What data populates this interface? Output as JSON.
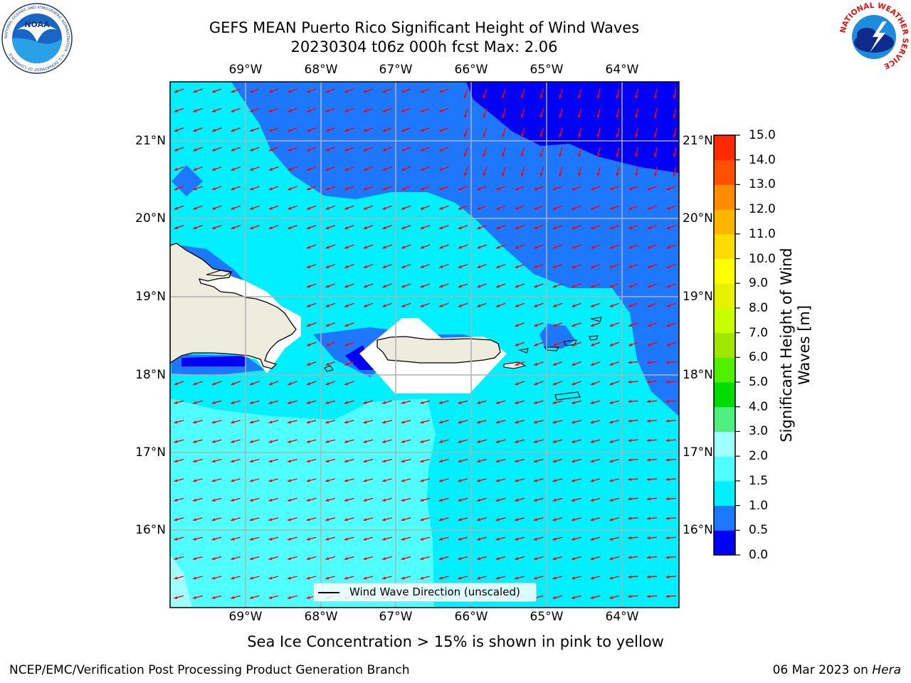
{
  "title": {
    "line1": "GEFS MEAN Puerto Rico Significant Height of Wind Waves",
    "line2": "20230304 t06z 000h fcst   Max: 2.06"
  },
  "map": {
    "lon_labels": [
      "69°W",
      "68°W",
      "67°W",
      "66°W",
      "65°W",
      "64°W"
    ],
    "lat_labels": [
      "21°N",
      "20°N",
      "19°N",
      "18°N",
      "17°N",
      "16°N"
    ],
    "land_color": "#eeecdc",
    "arrow_color": "#ff0000",
    "grid_color": "#b0b0b0"
  },
  "legend": {
    "label": "Wind Wave Direction (unscaled)"
  },
  "colorbar": {
    "label": "Significant Height of Wind Waves [m]",
    "ticks": [
      "0.0",
      "0.5",
      "1.0",
      "1.5",
      "2.0",
      "3.0",
      "4.0",
      "5.0",
      "6.0",
      "7.0",
      "8.0",
      "9.0",
      "10.0",
      "11.0",
      "12.0",
      "13.0",
      "14.0",
      "15.0"
    ],
    "colors": [
      "#0000f5",
      "#1e78ff",
      "#00f0ff",
      "#50ffff",
      "#a0ffff",
      "#50f080",
      "#00dc00",
      "#50f000",
      "#a0e600",
      "#c8ff00",
      "#e6f000",
      "#ffff00",
      "#ffdc00",
      "#ffb400",
      "#ff8c00",
      "#ff5000",
      "#ff2800",
      "#ff0000"
    ]
  },
  "caption": "Sea Ice Concentration > 15% is shown in pink to yellow",
  "footer": {
    "left": "NCEP/EMC/Verification Post Processing Product Generation Branch",
    "right_date": "06 Mar 2023 on ",
    "right_host": "Hera"
  },
  "logos": {
    "noaa": {
      "text": "NOAA",
      "ring_text": "NATIONAL OCEANIC AND ATMOSPHERIC ADMINISTRATION · U.S. DEPARTMENT OF COMMERCE"
    },
    "nws": {
      "ring_text": "NATIONAL WEATHER SERVICE"
    }
  }
}
